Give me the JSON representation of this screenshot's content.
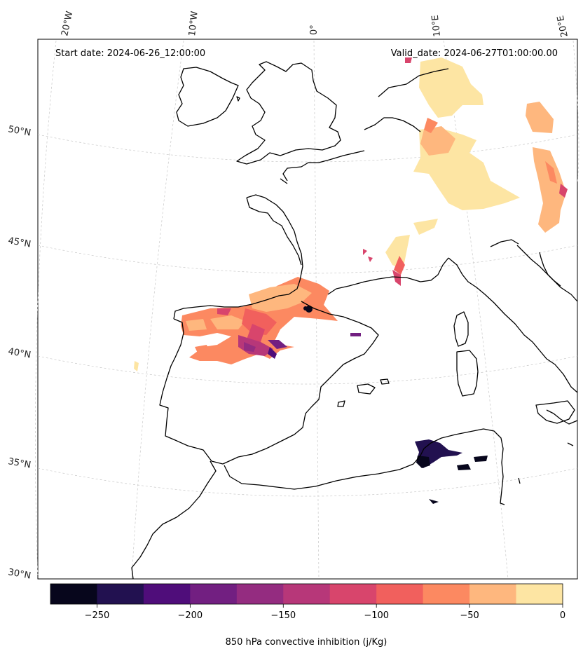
{
  "map": {
    "start_label": "Start date: 2024-06-26_12:00:00",
    "valid_label": "Valid_date: 2024-06-27T01:00:00.00",
    "lon_labels": [
      "20°W",
      "10°W",
      "0°",
      "10°E",
      "20°E"
    ],
    "lat_labels": [
      "50°N",
      "45°N",
      "40°N",
      "35°N",
      "30°N"
    ],
    "region": "Western Europe, Iberian Peninsula, Western Mediterranean"
  },
  "colorbar": {
    "label": "850 hPa convective inhibition (j/Kg)",
    "ticks": [
      "−250",
      "−200",
      "−150",
      "−100",
      "−50",
      "0"
    ],
    "levels": [
      -275,
      -250,
      -225,
      -200,
      -175,
      -150,
      -125,
      -100,
      -75,
      -50,
      -25,
      0
    ],
    "colors": [
      "#07061c",
      "#221150",
      "#4f0d7a",
      "#721f81",
      "#942c80",
      "#b73779",
      "#d8456c",
      "#f1605d",
      "#fc8961",
      "#feb77e",
      "#fde5a3"
    ]
  }
}
